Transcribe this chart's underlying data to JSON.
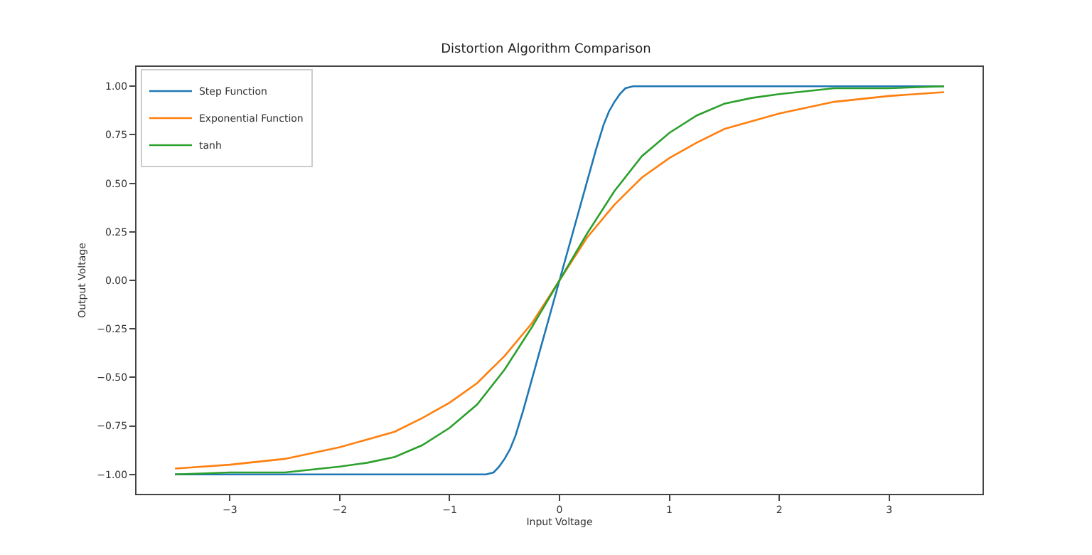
{
  "chart_data": {
    "type": "line",
    "title": "Distortion Algorithm Comparison",
    "xlabel": "Input Voltage",
    "ylabel": "Output Voltage",
    "xlim": [
      -3.85,
      3.85
    ],
    "ylim": [
      -1.1,
      1.1
    ],
    "xticks": [
      {
        "value": -3,
        "label": "−3"
      },
      {
        "value": -2,
        "label": "−2"
      },
      {
        "value": -1,
        "label": "−1"
      },
      0,
      1,
      2,
      3
    ],
    "yticks": [
      {
        "value": -1,
        "label": "−1.00"
      },
      {
        "value": -0.75,
        "label": "−0.75"
      },
      {
        "value": -0.5,
        "label": "−0.50"
      },
      {
        "value": -0.25,
        "label": "−0.25"
      },
      {
        "value": 0,
        "label": "0.00"
      },
      {
        "value": 0.25,
        "label": "0.25"
      },
      {
        "value": 0.5,
        "label": "0.50"
      },
      {
        "value": 0.75,
        "label": "0.75"
      },
      {
        "value": 1,
        "label": "1.00"
      }
    ],
    "legend": "top left",
    "marker": "none",
    "line_style": "solid",
    "series": [
      {
        "name": "Step Function",
        "color": "#1f77b4",
        "x": [
          -3.5,
          -0.67,
          -0.6,
          -0.55,
          -0.5,
          -0.45,
          -0.4,
          -0.33,
          0,
          0.33,
          0.4,
          0.45,
          0.5,
          0.55,
          0.6,
          0.67,
          3.5
        ],
        "values": [
          -1,
          -1,
          -0.99,
          -0.96,
          -0.92,
          -0.87,
          -0.8,
          -0.67,
          0,
          0.67,
          0.8,
          0.87,
          0.92,
          0.96,
          0.99,
          1,
          1
        ]
      },
      {
        "name": "Exponential Function",
        "color": "#ff7f0e",
        "x": [
          -3.5,
          -3,
          -2.5,
          -2,
          -1.5,
          -1.25,
          -1,
          -0.75,
          -0.5,
          -0.25,
          0,
          0.25,
          0.5,
          0.75,
          1,
          1.25,
          1.5,
          2,
          2.5,
          3,
          3.5
        ],
        "values": [
          -0.97,
          -0.95,
          -0.92,
          -0.86,
          -0.78,
          -0.71,
          -0.63,
          -0.53,
          -0.39,
          -0.22,
          0,
          0.22,
          0.39,
          0.53,
          0.63,
          0.71,
          0.78,
          0.86,
          0.92,
          0.95,
          0.97
        ]
      },
      {
        "name": "tanh",
        "color": "#2ca02c",
        "x": [
          -3.5,
          -3,
          -2.5,
          -2,
          -1.75,
          -1.5,
          -1.25,
          -1,
          -0.75,
          -0.5,
          -0.25,
          0,
          0.25,
          0.5,
          0.75,
          1,
          1.25,
          1.5,
          1.75,
          2,
          2.5,
          3,
          3.5
        ],
        "values": [
          -1,
          -0.99,
          -0.99,
          -0.96,
          -0.94,
          -0.91,
          -0.85,
          -0.76,
          -0.64,
          -0.46,
          -0.24,
          0,
          0.24,
          0.46,
          0.64,
          0.76,
          0.85,
          0.91,
          0.94,
          0.96,
          0.99,
          0.99,
          1
        ]
      }
    ]
  }
}
